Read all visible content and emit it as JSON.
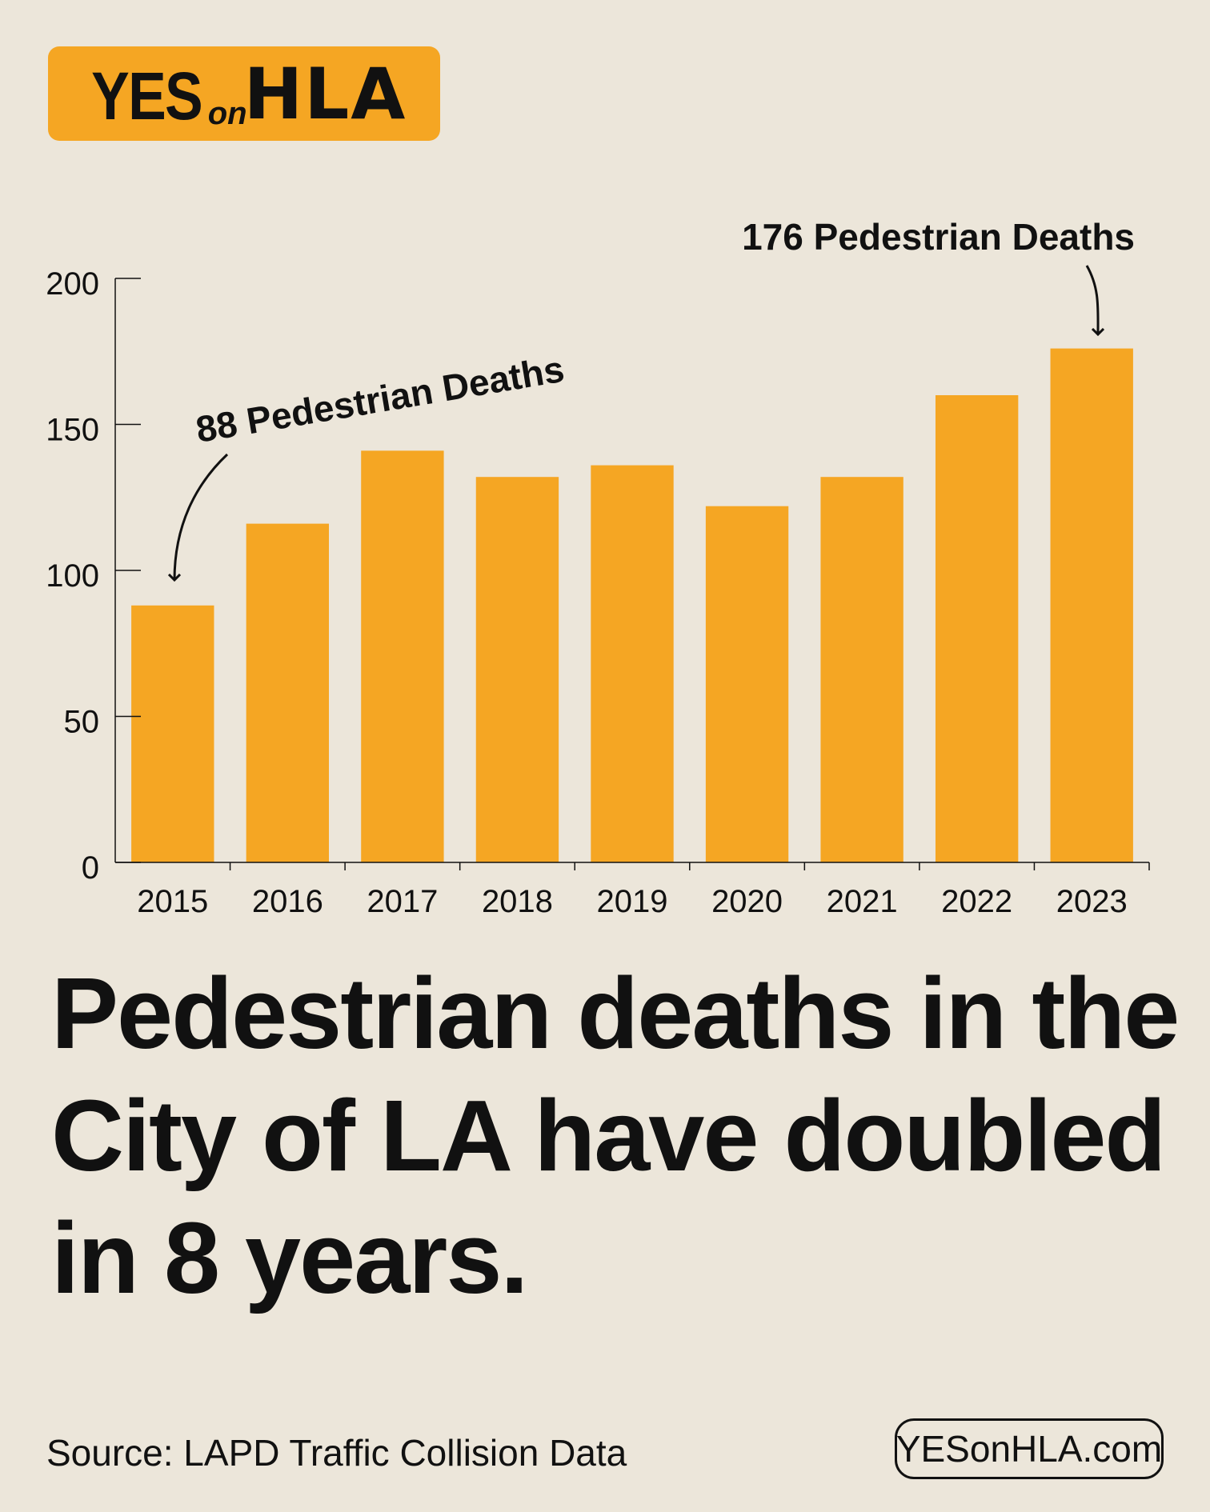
{
  "logo": {
    "part1": "YES",
    "part2": "on",
    "part3": "HLA"
  },
  "chart_data": {
    "type": "bar",
    "title": "",
    "xlabel": "",
    "ylabel": "",
    "categories": [
      "2015",
      "2016",
      "2017",
      "2018",
      "2019",
      "2020",
      "2021",
      "2022",
      "2023"
    ],
    "values": [
      88,
      116,
      141,
      132,
      136,
      122,
      132,
      160,
      176
    ],
    "ylim": [
      0,
      200
    ],
    "yticks": [
      0,
      50,
      100,
      150,
      200
    ],
    "bar_color": "#F5A623",
    "annotations": [
      {
        "category": "2015",
        "text": "88 Pedestrian Deaths"
      },
      {
        "category": "2023",
        "text": "176 Pedestrian Deaths"
      }
    ]
  },
  "headline": {
    "line1": "Pedestrian deaths in the",
    "line2": "City of LA have doubled",
    "line3": "in 8 years."
  },
  "footer": {
    "source": "Source: LAPD Traffic Collision Data",
    "website": "YESonHLA.com"
  }
}
